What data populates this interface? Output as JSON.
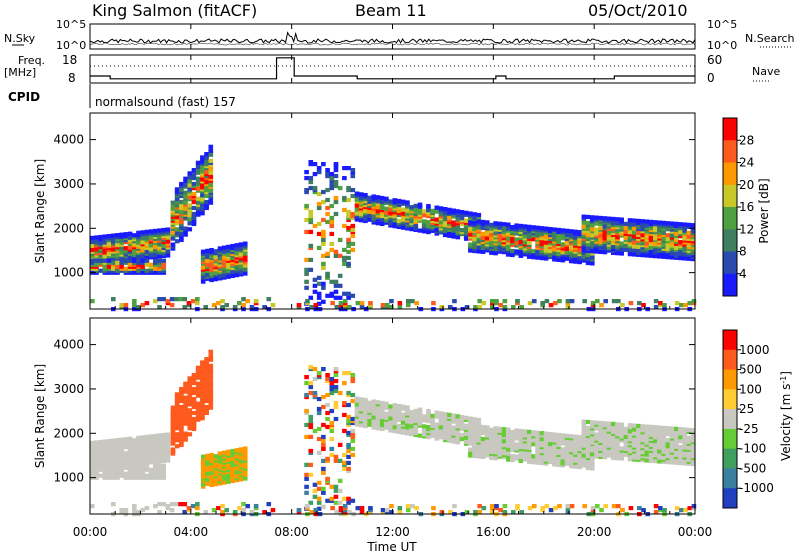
{
  "header": {
    "title": "King Salmon (fitACF)",
    "beam": "Beam 11",
    "date": "05/Oct/2010"
  },
  "noise_panel": {
    "left_label": "N.Sky",
    "right_label": "N.Search",
    "tick_top": "10^5",
    "tick_bottom": "10^0"
  },
  "freq_panel": {
    "left_label_1": "Freq.",
    "left_label_2": "[MHz]",
    "left_tick_top": "18",
    "left_tick_bottom": "8",
    "right_label": "Nave",
    "right_tick_top": "60",
    "right_tick_bottom": "0",
    "cpid_label": "CPID",
    "program": "normalsound (fast) 157"
  },
  "chart_data": [
    {
      "type": "heatmap",
      "parameter": "Power",
      "ylabel": "Slant Range [km]",
      "ylim": [
        180,
        4600
      ],
      "yticks": [
        "1000",
        "2000",
        "3000",
        "4000"
      ],
      "xlim_hours": [
        0,
        24
      ],
      "colorbar": {
        "label": "Power [dB]",
        "ticks": [
          "4",
          "8",
          "12",
          "16",
          "20",
          "24",
          "28"
        ],
        "colors": [
          "#1a1aff",
          "#2a4ab0",
          "#3f7f5f",
          "#4ea040",
          "#c8c828",
          "#ff9900",
          "#ff5a1e",
          "#ff0000"
        ]
      }
    },
    {
      "type": "heatmap",
      "parameter": "Velocity",
      "ylabel": "Slant Range [km]",
      "ylim": [
        180,
        4600
      ],
      "yticks": [
        "1000",
        "2000",
        "3000",
        "4000"
      ],
      "xlim_hours": [
        0,
        24
      ],
      "colorbar": {
        "label": "Velocity [m s-1]",
        "ticks": [
          "1000",
          "500",
          "100",
          "25",
          "-25",
          "-100",
          "-500",
          "-1000"
        ],
        "colors": [
          "#2040c0",
          "#3a7fa0",
          "#3f9f5f",
          "#66cc33",
          "#c8c8c0",
          "#ffcc33",
          "#ff9900",
          "#ff5a1e",
          "#ff0000"
        ]
      }
    }
  ],
  "xaxis": {
    "ticks": [
      "00:00",
      "04:00",
      "08:00",
      "12:00",
      "16:00",
      "20:00",
      "00:00"
    ],
    "label": "Time UT"
  }
}
